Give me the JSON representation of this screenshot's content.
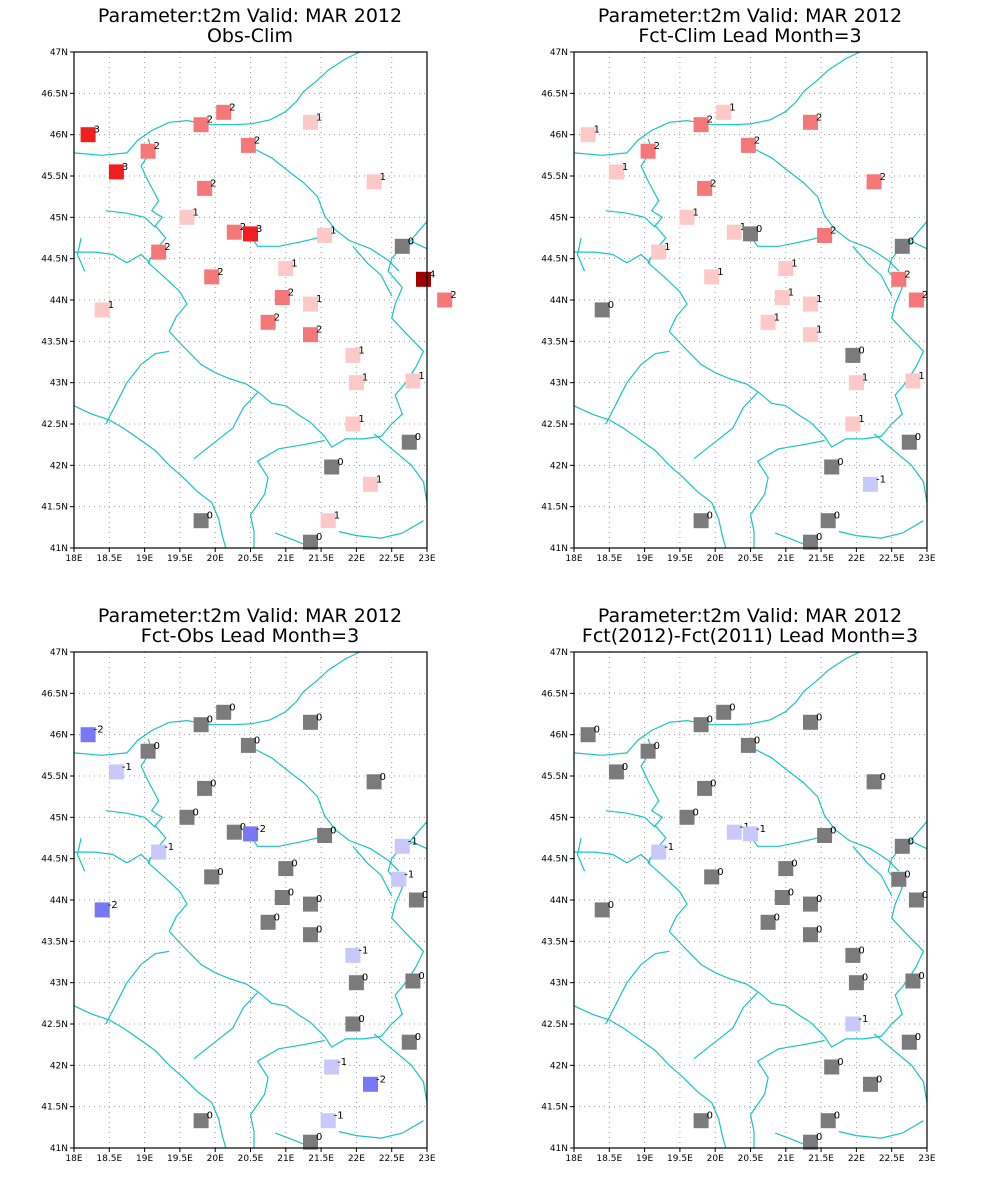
{
  "panels": [
    {
      "title1": "Parameter:t2m Valid: MAR 2012",
      "title2": "Obs-Clim",
      "points": [
        {
          "lon": 18.2,
          "lat": 46.0,
          "v": 3
        },
        {
          "lon": 18.6,
          "lat": 45.55,
          "v": 3
        },
        {
          "lon": 19.05,
          "lat": 45.8,
          "v": 2
        },
        {
          "lon": 19.8,
          "lat": 46.12,
          "v": 2
        },
        {
          "lon": 20.12,
          "lat": 46.27,
          "v": 2
        },
        {
          "lon": 20.47,
          "lat": 45.87,
          "v": 2
        },
        {
          "lon": 21.35,
          "lat": 46.15,
          "v": 1
        },
        {
          "lon": 19.85,
          "lat": 45.35,
          "v": 2
        },
        {
          "lon": 19.6,
          "lat": 45.0,
          "v": 1
        },
        {
          "lon": 20.27,
          "lat": 44.82,
          "v": 2
        },
        {
          "lon": 20.5,
          "lat": 44.8,
          "v": 3
        },
        {
          "lon": 19.2,
          "lat": 44.58,
          "v": 2
        },
        {
          "lon": 19.95,
          "lat": 44.28,
          "v": 2
        },
        {
          "lon": 21.0,
          "lat": 44.38,
          "v": 1
        },
        {
          "lon": 21.55,
          "lat": 44.78,
          "v": 1
        },
        {
          "lon": 22.25,
          "lat": 45.43,
          "v": 1
        },
        {
          "lon": 22.65,
          "lat": 44.65,
          "v": 0
        },
        {
          "lon": 22.95,
          "lat": 44.25,
          "v": 4
        },
        {
          "lon": 23.25,
          "lat": 44.0,
          "v": 2
        },
        {
          "lon": 18.4,
          "lat": 43.88,
          "v": 1
        },
        {
          "lon": 20.95,
          "lat": 44.03,
          "v": 2
        },
        {
          "lon": 20.75,
          "lat": 43.73,
          "v": 2
        },
        {
          "lon": 21.35,
          "lat": 43.95,
          "v": 1
        },
        {
          "lon": 21.35,
          "lat": 43.58,
          "v": 2
        },
        {
          "lon": 21.95,
          "lat": 43.33,
          "v": 1
        },
        {
          "lon": 22.0,
          "lat": 43.0,
          "v": 1
        },
        {
          "lon": 22.8,
          "lat": 43.02,
          "v": 1
        },
        {
          "lon": 21.95,
          "lat": 42.5,
          "v": 1
        },
        {
          "lon": 22.75,
          "lat": 42.28,
          "v": 0
        },
        {
          "lon": 21.65,
          "lat": 41.98,
          "v": 0
        },
        {
          "lon": 22.2,
          "lat": 41.77,
          "v": 1
        },
        {
          "lon": 19.8,
          "lat": 41.33,
          "v": 0
        },
        {
          "lon": 21.6,
          "lat": 41.33,
          "v": 1
        },
        {
          "lon": 21.35,
          "lat": 41.07,
          "v": 0
        }
      ]
    },
    {
      "title1": "Parameter:t2m Valid: MAR 2012",
      "title2": "Fct-Clim Lead Month=3",
      "points": [
        {
          "lon": 18.2,
          "lat": 46.0,
          "v": 1
        },
        {
          "lon": 18.6,
          "lat": 45.55,
          "v": 1
        },
        {
          "lon": 19.05,
          "lat": 45.8,
          "v": 2
        },
        {
          "lon": 19.8,
          "lat": 46.12,
          "v": 2
        },
        {
          "lon": 20.12,
          "lat": 46.27,
          "v": 1
        },
        {
          "lon": 20.47,
          "lat": 45.87,
          "v": 2
        },
        {
          "lon": 21.35,
          "lat": 46.15,
          "v": 2
        },
        {
          "lon": 19.85,
          "lat": 45.35,
          "v": 2
        },
        {
          "lon": 19.6,
          "lat": 45.0,
          "v": 1
        },
        {
          "lon": 20.27,
          "lat": 44.82,
          "v": 1
        },
        {
          "lon": 20.5,
          "lat": 44.8,
          "v": 0
        },
        {
          "lon": 19.2,
          "lat": 44.58,
          "v": 1
        },
        {
          "lon": 19.95,
          "lat": 44.28,
          "v": 1
        },
        {
          "lon": 21.0,
          "lat": 44.38,
          "v": 1
        },
        {
          "lon": 21.55,
          "lat": 44.78,
          "v": 2
        },
        {
          "lon": 22.25,
          "lat": 45.43,
          "v": 2
        },
        {
          "lon": 22.65,
          "lat": 44.65,
          "v": 0
        },
        {
          "lon": 22.6,
          "lat": 44.25,
          "v": 2
        },
        {
          "lon": 22.85,
          "lat": 44.0,
          "v": 2
        },
        {
          "lon": 18.4,
          "lat": 43.88,
          "v": 0
        },
        {
          "lon": 20.95,
          "lat": 44.03,
          "v": 1
        },
        {
          "lon": 20.75,
          "lat": 43.73,
          "v": 1
        },
        {
          "lon": 21.35,
          "lat": 43.95,
          "v": 1
        },
        {
          "lon": 21.35,
          "lat": 43.58,
          "v": 1
        },
        {
          "lon": 21.95,
          "lat": 43.33,
          "v": 0
        },
        {
          "lon": 22.0,
          "lat": 43.0,
          "v": 1
        },
        {
          "lon": 22.8,
          "lat": 43.02,
          "v": 1
        },
        {
          "lon": 21.95,
          "lat": 42.5,
          "v": 1
        },
        {
          "lon": 22.75,
          "lat": 42.28,
          "v": 0
        },
        {
          "lon": 21.65,
          "lat": 41.98,
          "v": 0
        },
        {
          "lon": 22.2,
          "lat": 41.77,
          "v": -1
        },
        {
          "lon": 19.8,
          "lat": 41.33,
          "v": 0
        },
        {
          "lon": 21.6,
          "lat": 41.33,
          "v": 0
        },
        {
          "lon": 21.35,
          "lat": 41.07,
          "v": 0
        }
      ]
    },
    {
      "title1": "Parameter:t2m Valid: MAR 2012",
      "title2": "Fct-Obs Lead Month=3",
      "points": [
        {
          "lon": 18.2,
          "lat": 46.0,
          "v": -2
        },
        {
          "lon": 18.6,
          "lat": 45.55,
          "v": -1
        },
        {
          "lon": 19.05,
          "lat": 45.8,
          "v": 0
        },
        {
          "lon": 19.8,
          "lat": 46.12,
          "v": 0
        },
        {
          "lon": 20.12,
          "lat": 46.27,
          "v": 0
        },
        {
          "lon": 20.47,
          "lat": 45.87,
          "v": 0
        },
        {
          "lon": 21.35,
          "lat": 46.15,
          "v": 0
        },
        {
          "lon": 19.85,
          "lat": 45.35,
          "v": 0
        },
        {
          "lon": 19.6,
          "lat": 45.0,
          "v": 0
        },
        {
          "lon": 20.27,
          "lat": 44.82,
          "v": 0
        },
        {
          "lon": 20.5,
          "lat": 44.8,
          "v": -2
        },
        {
          "lon": 19.2,
          "lat": 44.58,
          "v": -1
        },
        {
          "lon": 19.95,
          "lat": 44.28,
          "v": 0
        },
        {
          "lon": 21.0,
          "lat": 44.38,
          "v": 0
        },
        {
          "lon": 21.55,
          "lat": 44.78,
          "v": 0
        },
        {
          "lon": 22.25,
          "lat": 45.43,
          "v": 0
        },
        {
          "lon": 22.65,
          "lat": 44.65,
          "v": -1
        },
        {
          "lon": 22.6,
          "lat": 44.25,
          "v": -1
        },
        {
          "lon": 22.85,
          "lat": 44.0,
          "v": 0
        },
        {
          "lon": 18.4,
          "lat": 43.88,
          "v": -2
        },
        {
          "lon": 20.95,
          "lat": 44.03,
          "v": 0
        },
        {
          "lon": 20.75,
          "lat": 43.73,
          "v": 0
        },
        {
          "lon": 21.35,
          "lat": 43.95,
          "v": 0
        },
        {
          "lon": 21.35,
          "lat": 43.58,
          "v": 0
        },
        {
          "lon": 21.95,
          "lat": 43.33,
          "v": -1
        },
        {
          "lon": 22.0,
          "lat": 43.0,
          "v": 0
        },
        {
          "lon": 22.8,
          "lat": 43.02,
          "v": 0
        },
        {
          "lon": 21.95,
          "lat": 42.5,
          "v": 0
        },
        {
          "lon": 22.75,
          "lat": 42.28,
          "v": 0
        },
        {
          "lon": 21.65,
          "lat": 41.98,
          "v": -1
        },
        {
          "lon": 22.2,
          "lat": 41.77,
          "v": -2
        },
        {
          "lon": 19.8,
          "lat": 41.33,
          "v": 0
        },
        {
          "lon": 21.6,
          "lat": 41.33,
          "v": -1
        },
        {
          "lon": 21.35,
          "lat": 41.07,
          "v": 0
        }
      ]
    },
    {
      "title1": "Parameter:t2m Valid: MAR 2012",
      "title2": "Fct(2012)-Fct(2011) Lead Month=3",
      "points": [
        {
          "lon": 18.2,
          "lat": 46.0,
          "v": 0
        },
        {
          "lon": 18.6,
          "lat": 45.55,
          "v": 0
        },
        {
          "lon": 19.05,
          "lat": 45.8,
          "v": 0
        },
        {
          "lon": 19.8,
          "lat": 46.12,
          "v": 0
        },
        {
          "lon": 20.12,
          "lat": 46.27,
          "v": 0
        },
        {
          "lon": 20.47,
          "lat": 45.87,
          "v": 0
        },
        {
          "lon": 21.35,
          "lat": 46.15,
          "v": 0
        },
        {
          "lon": 19.85,
          "lat": 45.35,
          "v": 0
        },
        {
          "lon": 19.6,
          "lat": 45.0,
          "v": 0
        },
        {
          "lon": 20.27,
          "lat": 44.82,
          "v": -1
        },
        {
          "lon": 20.5,
          "lat": 44.8,
          "v": -1
        },
        {
          "lon": 19.2,
          "lat": 44.58,
          "v": -1
        },
        {
          "lon": 19.95,
          "lat": 44.28,
          "v": 0
        },
        {
          "lon": 21.0,
          "lat": 44.38,
          "v": 0
        },
        {
          "lon": 21.55,
          "lat": 44.78,
          "v": 0
        },
        {
          "lon": 22.25,
          "lat": 45.43,
          "v": 0
        },
        {
          "lon": 22.65,
          "lat": 44.65,
          "v": 0
        },
        {
          "lon": 22.6,
          "lat": 44.25,
          "v": 0
        },
        {
          "lon": 22.85,
          "lat": 44.0,
          "v": 0
        },
        {
          "lon": 18.4,
          "lat": 43.88,
          "v": 0
        },
        {
          "lon": 20.95,
          "lat": 44.03,
          "v": 0
        },
        {
          "lon": 20.75,
          "lat": 43.73,
          "v": 0
        },
        {
          "lon": 21.35,
          "lat": 43.95,
          "v": 0
        },
        {
          "lon": 21.35,
          "lat": 43.58,
          "v": 0
        },
        {
          "lon": 21.95,
          "lat": 43.33,
          "v": 0
        },
        {
          "lon": 22.0,
          "lat": 43.0,
          "v": 0
        },
        {
          "lon": 22.8,
          "lat": 43.02,
          "v": 0
        },
        {
          "lon": 21.95,
          "lat": 42.5,
          "v": -1
        },
        {
          "lon": 22.75,
          "lat": 42.28,
          "v": 0
        },
        {
          "lon": 21.65,
          "lat": 41.98,
          "v": 0
        },
        {
          "lon": 22.2,
          "lat": 41.77,
          "v": 0
        },
        {
          "lon": 19.8,
          "lat": 41.33,
          "v": 0
        },
        {
          "lon": 21.6,
          "lat": 41.33,
          "v": 0
        },
        {
          "lon": 21.35,
          "lat": 41.07,
          "v": 0
        }
      ]
    }
  ],
  "axes": {
    "lon_min": 18,
    "lon_max": 23,
    "lat_min": 41,
    "lat_max": 47,
    "lon_ticks": [
      "18E",
      "18.5E",
      "19E",
      "19.5E",
      "20E",
      "20.5E",
      "21E",
      "21.5E",
      "22E",
      "22.5E",
      "23E"
    ],
    "lat_ticks": [
      "41N",
      "41.5N",
      "42N",
      "42.5N",
      "43N",
      "43.5N",
      "44N",
      "44.5N",
      "45N",
      "45.5N",
      "46N",
      "46.5N",
      "47N"
    ]
  },
  "colors": {
    "-2": "#7878f5",
    "-1": "#c8c8fa",
    "0": "#7b7b7b",
    "1": "#fcc8c8",
    "2": "#f57878",
    "3": "#f01e1e",
    "4": "#a00000",
    "border": "#19c3c3"
  }
}
